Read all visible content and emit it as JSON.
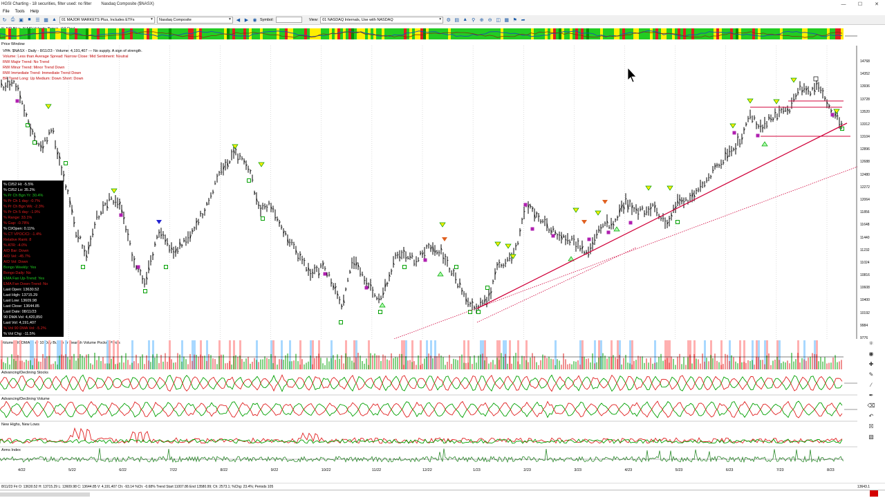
{
  "window": {
    "app_title": "HGSI Charting - 18 securities, filter used: no filter",
    "chart_title": "Nasdaq Composite ($NASX)"
  },
  "menu": [
    "File",
    "Tools",
    "Help"
  ],
  "toolbar": {
    "market_list": "01 MAJOR MARKETS Plus, Includes ETFs",
    "security": "Nasdaq Composite",
    "symbol_label": "Symbol:",
    "symbol_value": "",
    "view_label": "View:",
    "view_value": "01 NASDAQ Internals, Use with NASDAQ"
  },
  "strip_label": "% A/D Blue, %A/D Velocity Brown, (10 Day)",
  "price_window": {
    "label": "Price Window",
    "lines": [
      {
        "text": "VPA: $NASX - Daily - 8/11/23 - Volume: 4,191,407 --- No supply. A sign of strength.",
        "color": "#000000"
      },
      {
        "text": "Volume: Less than Average   Spread: Narrow   Close: Mid   Sentiment: Neutral",
        "color": "#c00000"
      },
      {
        "text": "RWI Major Trend: No Trend",
        "color": "#c00000"
      },
      {
        "text": "RWI Minor Trend: Minor Trend Down",
        "color": "#c00000"
      },
      {
        "text": "RWI Immediate Trend: Immediate Trend Down",
        "color": "#c00000"
      },
      {
        "text": "BF Trend Long: Up   Medium: Down   Short: Down",
        "color": "#c00000"
      }
    ]
  },
  "stats_box": [
    {
      "text": "% Cl/52 Hi: -5.5%",
      "color": "#ffffff"
    },
    {
      "text": "% Cl/52 Lo: 35.2%",
      "color": "#ffffff"
    },
    {
      "text": "% Pr Ch Bgn Yr: 30.4%",
      "color": "#22cc22"
    },
    {
      "text": "% Pr Ch 1 day: -0.7%",
      "color": "#e02020"
    },
    {
      "text": "% Pr Ch Bgn Wk: -2.3%",
      "color": "#e02020"
    },
    {
      "text": "% Pr Ch 5 day: -1.9%",
      "color": "#e02020"
    },
    {
      "text": "% Range: 33.1%",
      "color": "#e02020"
    },
    {
      "text": "% Gap: -0.78%",
      "color": "#e02020"
    },
    {
      "text": "% Cl/Open: 0.11%",
      "color": "#ffffff"
    },
    {
      "text": "% CT VPOC/Cl: -1.4%",
      "color": "#e02020"
    },
    {
      "text": "Relative Rank: 8",
      "color": "#e02020"
    },
    {
      "text": "% ATR: -4.0%",
      "color": "#e02020"
    },
    {
      "text": "A/D Bar: Down",
      "color": "#e02020"
    },
    {
      "text": "A/D Vel: -45.7%",
      "color": "#e02020"
    },
    {
      "text": "A/D Vol: Down",
      "color": "#e02020"
    },
    {
      "text": "Bongo Weekly: Yes",
      "color": "#22cc22"
    },
    {
      "text": "Bongo Daily: No",
      "color": "#e02020"
    },
    {
      "text": "EMA Fan Up-Trend: Yes",
      "color": "#22cc22"
    },
    {
      "text": "EMA Fan Down-Trend: No",
      "color": "#e02020"
    },
    {
      "text": "Last Open: 13630.52",
      "color": "#ffffff"
    },
    {
      "text": "Last High: 13715.29",
      "color": "#ffffff"
    },
    {
      "text": "Last Low: 13609.98",
      "color": "#ffffff"
    },
    {
      "text": "Last Close: 13644.85",
      "color": "#ffffff"
    },
    {
      "text": "Last Date: 08/11/23",
      "color": "#ffffff"
    },
    {
      "text": "90 DMA Vol: 4,420,850",
      "color": "#ffffff"
    },
    {
      "text": "Last Vol: 4,191,407",
      "color": "#ffffff"
    },
    {
      "text": "% Vol 90 DMA Vol: -5.2%",
      "color": "#e02020"
    },
    {
      "text": "% Vol Chg: -11.5%",
      "color": "#ffffff"
    }
  ],
  "price_axis": [
    "14768",
    "14352",
    "13936",
    "13728",
    "13520",
    "13312",
    "13104",
    "12896",
    "12688",
    "12480",
    "12272",
    "12064",
    "11856",
    "11648",
    "11440",
    "11232",
    "11024",
    "10816",
    "10608",
    "10400",
    "10192",
    "9984",
    "9776"
  ],
  "indicator_labels": {
    "volume": "Volume, 90 DMA, 5 or 10 Day Bullish or Bearish Volume Pocket Pivots",
    "ad_stocks": "Advancing/Declining Stocks",
    "ad_volume": "Advancing/Declining Volume",
    "nhnl": "New Highs, New Lows",
    "arms": "Arms Index"
  },
  "x_axis": [
    "4/22",
    "5/22",
    "6/22",
    "7/22",
    "8/22",
    "9/22",
    "10/22",
    "11/22",
    "12/22",
    "1/23",
    "2/23",
    "3/23",
    "4/23",
    "5/23",
    "6/23",
    "7/23",
    "8/23"
  ],
  "status": {
    "left": "8/11/23 Fri O: 13630.52 H: 13715.29 L: 13609.98 C: 13644.85 V: 4,191,407 Ch: -93.14 %Ch: -0.68%  Trend Start 11007.86 End 13580.99; Ch: 2573.1; %Chg: 23.4%; Periods 105",
    "right": "13643.1"
  },
  "colors": {
    "up": "#00a000",
    "down": "#e02020",
    "trend": "#d0003a",
    "accent": "#1a5aa8"
  }
}
